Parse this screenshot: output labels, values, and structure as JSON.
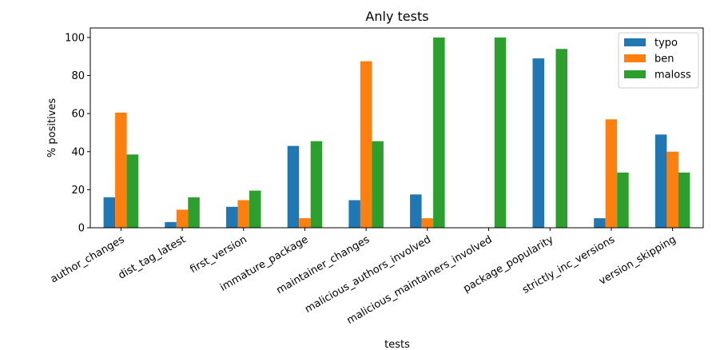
{
  "chart_data": {
    "type": "bar",
    "title": "Anly tests",
    "xlabel": "tests",
    "ylabel": "% positives",
    "ylim": [
      0,
      105
    ],
    "yticks": [
      0,
      20,
      40,
      60,
      80,
      100
    ],
    "categories": [
      "author_changes",
      "dist_tag_latest",
      "first_version",
      "immature_package",
      "maintainer_changes",
      "malicious_authors_involved",
      "malicious_maintainers_involved",
      "package_popularity",
      "strictly_inc_versions",
      "version_skipping"
    ],
    "series": [
      {
        "name": "typo",
        "color": "#1f77b4",
        "values": [
          16,
          3,
          11,
          43,
          14.5,
          17.5,
          0,
          89,
          5,
          49
        ]
      },
      {
        "name": "ben",
        "color": "#ff7f0e",
        "values": [
          60.5,
          9.5,
          14.5,
          5,
          87.5,
          5,
          0,
          0,
          57,
          40
        ]
      },
      {
        "name": "maloss",
        "color": "#2ca02c",
        "values": [
          38.5,
          16,
          19.5,
          45.5,
          45.5,
          100,
          100,
          94,
          29,
          29
        ]
      }
    ],
    "legend": "top-right",
    "grid": false
  }
}
